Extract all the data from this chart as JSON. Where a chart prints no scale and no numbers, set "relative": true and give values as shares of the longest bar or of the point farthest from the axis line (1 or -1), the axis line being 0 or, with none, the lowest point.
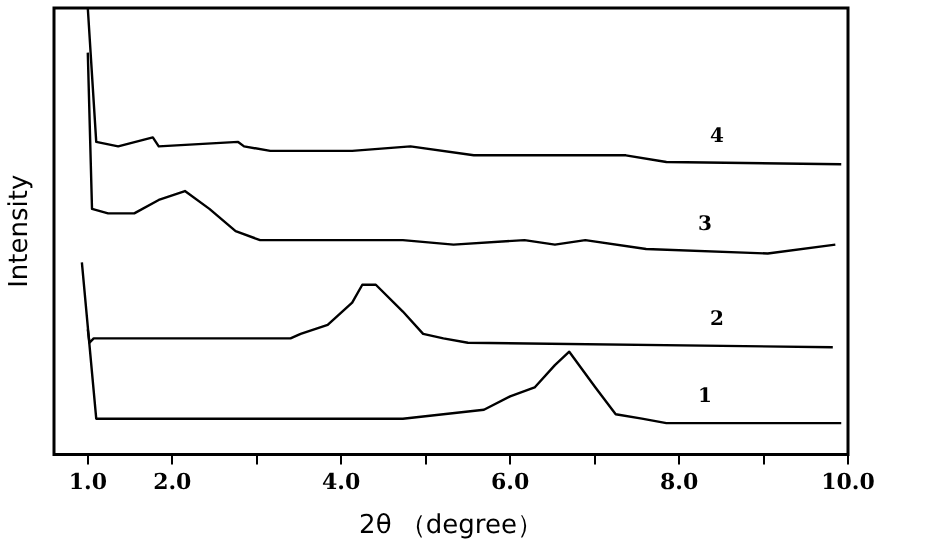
{
  "chart_data": {
    "type": "line",
    "relative": true,
    "xlabel": "2θ （degree）",
    "ylabel": "Intensity",
    "xlim": [
      0.6,
      10.0
    ],
    "xticks": [
      {
        "value": 1,
        "label": "1.0"
      },
      {
        "value": 2,
        "label": "2.0"
      },
      {
        "value": 3,
        "label": null
      },
      {
        "value": 4,
        "label": "4.0"
      },
      {
        "value": 5,
        "label": null
      },
      {
        "value": 6,
        "label": "6.0"
      },
      {
        "value": 7,
        "label": null
      },
      {
        "value": 8,
        "label": "8.0"
      },
      {
        "value": 9,
        "label": null
      },
      {
        "value": 10,
        "label": "10.0"
      }
    ],
    "tick_labels": "x",
    "legend": false,
    "marker": "none",
    "line_style": "solid",
    "series": [
      {
        "name": "1",
        "color": "#000000",
        "x": [
          0.93,
          1.1,
          4.73,
          5.69,
          6.0,
          6.29,
          6.53,
          6.7,
          7.01,
          7.25,
          7.56,
          7.85,
          9.92
        ],
        "values": [
          0.43,
          0.08,
          0.08,
          0.1,
          0.13,
          0.15,
          0.2,
          0.23,
          0.15,
          0.09,
          0.08,
          0.07,
          0.07
        ]
      },
      {
        "name": "2",
        "color": "#000000",
        "x": [
          1.0,
          1.02,
          1.07,
          3.4,
          3.52,
          3.84,
          4.13,
          4.25,
          4.41,
          4.73,
          4.97,
          5.21,
          5.5,
          9.82
        ],
        "values": [
          0.28,
          0.25,
          0.26,
          0.26,
          0.27,
          0.29,
          0.34,
          0.38,
          0.38,
          0.32,
          0.27,
          0.26,
          0.25,
          0.24
        ]
      },
      {
        "name": "3",
        "color": "#000000",
        "x": [
          1.0,
          1.05,
          1.24,
          1.55,
          1.84,
          2.15,
          2.44,
          2.75,
          3.04,
          3.4,
          4.13,
          4.73,
          5.33,
          6.17,
          6.53,
          6.89,
          7.61,
          9.05,
          9.85
        ],
        "values": [
          0.9,
          0.55,
          0.54,
          0.54,
          0.57,
          0.59,
          0.55,
          0.5,
          0.48,
          0.48,
          0.48,
          0.48,
          0.47,
          0.48,
          0.47,
          0.48,
          0.46,
          0.45,
          0.47
        ]
      },
      {
        "name": "4",
        "color": "#000000",
        "x": [
          1.0,
          1.1,
          1.36,
          1.77,
          1.84,
          2.78,
          2.85,
          3.16,
          4.13,
          4.82,
          5.57,
          7.37,
          7.85,
          9.92
        ],
        "values": [
          1.0,
          0.7,
          0.69,
          0.71,
          0.69,
          0.7,
          0.69,
          0.68,
          0.68,
          0.69,
          0.67,
          0.67,
          0.655,
          0.65
        ]
      }
    ]
  }
}
